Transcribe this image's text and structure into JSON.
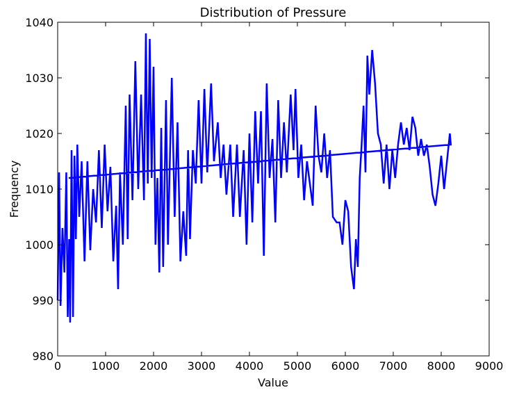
{
  "chart_data": {
    "type": "line",
    "title": "Distribution of Pressure",
    "x_label": "Value",
    "y_label": "Frequency",
    "series": [
      {
        "color": "#0000ff",
        "x": [
          0,
          30,
          60,
          100,
          140,
          180,
          210,
          240,
          260,
          290,
          320,
          350,
          380,
          410,
          450,
          500,
          560,
          620,
          680,
          740,
          800,
          860,
          920,
          980,
          1040,
          1100,
          1160,
          1220,
          1260,
          1300,
          1360,
          1420,
          1460,
          1500,
          1560,
          1620,
          1680,
          1740,
          1800,
          1840,
          1880,
          1920,
          1960,
          2000,
          2040,
          2080,
          2120,
          2160,
          2200,
          2260,
          2300,
          2380,
          2440,
          2500,
          2560,
          2620,
          2680,
          2720,
          2760,
          2820,
          2880,
          2940,
          3000,
          3060,
          3120,
          3200,
          3260,
          3340,
          3400,
          3460,
          3520,
          3600,
          3660,
          3740,
          3800,
          3880,
          3940,
          4000,
          4060,
          4120,
          4180,
          4240,
          4300,
          4360,
          4420,
          4480,
          4540,
          4600,
          4660,
          4720,
          4780,
          4860,
          4920,
          4960,
          5020,
          5080,
          5140,
          5200,
          5260,
          5320,
          5380,
          5440,
          5500,
          5560,
          5620,
          5680,
          5740,
          5820,
          5880,
          5940,
          6000,
          6060,
          6120,
          6180,
          6220,
          6260,
          6300,
          6340,
          6380,
          6420,
          6460,
          6500,
          6560,
          6620,
          6680,
          6740,
          6800,
          6860,
          6920,
          6980,
          7040,
          7100,
          7160,
          7220,
          7280,
          7340,
          7400,
          7460,
          7520,
          7580,
          7640,
          7700,
          7760,
          7820,
          7880,
          7940,
          8000,
          8060,
          8120,
          8180,
          8200,
          230
        ],
        "values": [
          990,
          1013,
          989,
          1003,
          995,
          1013,
          987,
          1001,
          986,
          1017,
          987,
          1016,
          1001,
          1018,
          1005,
          1015,
          997,
          1015,
          999,
          1010,
          1004,
          1017,
          1003,
          1018,
          1006,
          1014,
          997,
          1007,
          992,
          1013,
          1000,
          1025,
          1001,
          1027,
          1008,
          1033,
          1010,
          1027,
          1008,
          1038,
          1011,
          1037,
          1012,
          1032,
          1000,
          1012,
          995,
          1021,
          996,
          1026,
          1000,
          1030,
          1005,
          1022,
          997,
          1006,
          998,
          1017,
          1001,
          1017,
          1011,
          1026,
          1011,
          1028,
          1013,
          1029,
          1015,
          1022,
          1012,
          1018,
          1009,
          1018,
          1005,
          1018,
          1005,
          1017,
          1000,
          1020,
          1004,
          1024,
          1011,
          1024,
          998,
          1029,
          1012,
          1019,
          1004,
          1026,
          1012,
          1022,
          1013,
          1027,
          1017,
          1028,
          1012,
          1018,
          1008,
          1015,
          1011,
          1007,
          1025,
          1016,
          1013,
          1020,
          1012,
          1017,
          1005,
          1004,
          1004,
          1000,
          1008,
          1006,
          996,
          992,
          1001,
          996,
          1012,
          1018,
          1025,
          1013,
          1034,
          1027,
          1035,
          1029,
          1020,
          1018,
          1011,
          1018,
          1010,
          1017,
          1012,
          1018,
          1022,
          1018,
          1021,
          1017,
          1023,
          1021,
          1016,
          1019,
          1016,
          1018,
          1014,
          1009,
          1007,
          1011,
          1016,
          1010,
          1015,
          1020,
          1018,
          1012
        ]
      }
    ],
    "xlim": [
      0,
      9000
    ],
    "xticks": [
      0,
      1000,
      2000,
      3000,
      4000,
      5000,
      6000,
      7000,
      8000,
      9000
    ],
    "ylim": [
      980,
      1040
    ],
    "yticks": [
      980,
      990,
      1000,
      1010,
      1020,
      1030,
      1040
    ]
  }
}
